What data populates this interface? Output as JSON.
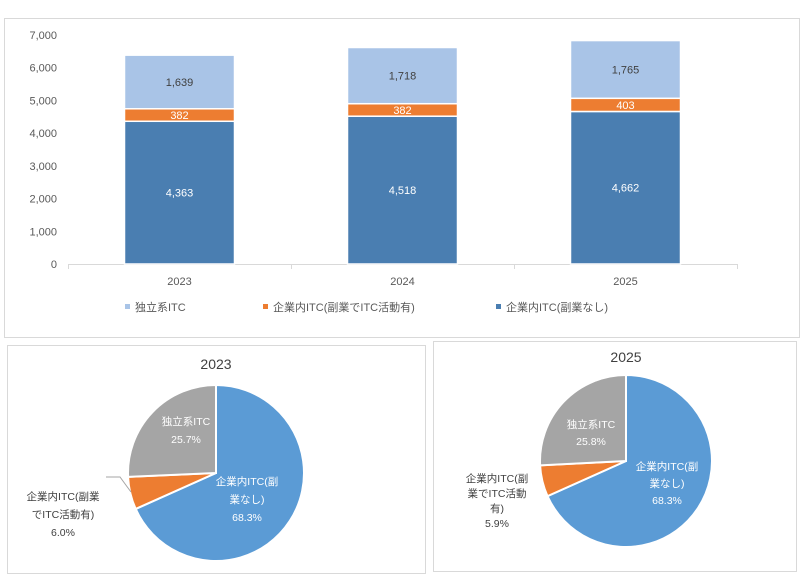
{
  "chart_data": [
    {
      "type": "bar",
      "stacked": true,
      "title": "",
      "xlabel": "",
      "ylabel": "",
      "categories": [
        "2023",
        "2024",
        "2025"
      ],
      "ylim": [
        0,
        7000
      ],
      "yticks": [
        "0",
        "1,000",
        "2,000",
        "3,000",
        "4,000",
        "5,000",
        "6,000",
        "7,000"
      ],
      "grid": false,
      "legend_position": "bottom",
      "series": [
        {
          "name": "企業内ITC(副業なし)",
          "values": [
            4363,
            4518,
            4662
          ],
          "labels": [
            "4,363",
            "4,518",
            "4,662"
          ],
          "color": "#4a7eb1"
        },
        {
          "name": "企業内ITC(副業でITC活動有)",
          "values": [
            382,
            382,
            403
          ],
          "labels": [
            "382",
            "382",
            "403"
          ],
          "color": "#ed7d31"
        },
        {
          "name": "独立系ITC",
          "values": [
            1639,
            1718,
            1765
          ],
          "labels": [
            "1,639",
            "1,718",
            "1,765"
          ],
          "color": "#a9c4e7"
        }
      ],
      "legend": [
        "独立系ITC",
        "企業内ITC(副業でITC活動有)",
        "企業内ITC(副業なし)"
      ]
    },
    {
      "type": "pie",
      "title": "2023",
      "slices": [
        {
          "name": "企業内ITC(副業なし)",
          "value": 68.3,
          "label_lines": [
            "企業内ITC(副",
            "業なし)",
            "68.3%"
          ],
          "color": "#5b9bd5"
        },
        {
          "name": "企業内ITC(副業でITC活動有)",
          "value": 6.0,
          "label_lines": [
            "企業内ITC(副業",
            "でITC活動有)",
            "6.0%"
          ],
          "color": "#ed7d31"
        },
        {
          "name": "独立系ITC",
          "value": 25.7,
          "label_lines": [
            "独立系ITC",
            "25.7%"
          ],
          "color": "#a5a5a5"
        }
      ]
    },
    {
      "type": "pie",
      "title": "2025",
      "slices": [
        {
          "name": "企業内ITC(副業なし)",
          "value": 68.3,
          "label_lines": [
            "企業内ITC(副",
            "業なし)",
            "68.3%"
          ],
          "color": "#5b9bd5"
        },
        {
          "name": "企業内ITC(副業でITC活動有)",
          "value": 5.9,
          "label_lines": [
            "企業内ITC(副",
            "業でITC活動",
            "有)",
            "5.9%"
          ],
          "color": "#ed7d31"
        },
        {
          "name": "独立系ITC",
          "value": 25.8,
          "label_lines": [
            "独立系ITC",
            "25.8%"
          ],
          "color": "#a5a5a5"
        }
      ]
    }
  ]
}
